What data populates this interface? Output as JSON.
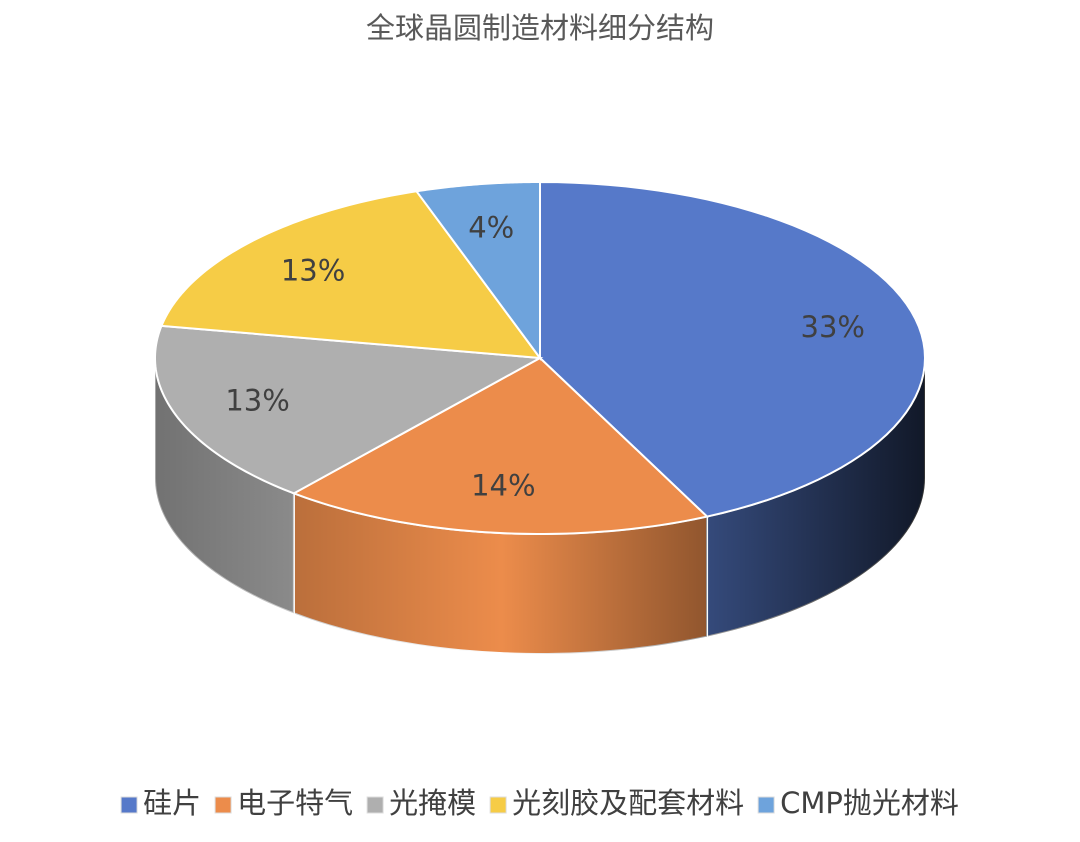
{
  "chart_data": {
    "type": "pie3d",
    "title": "全球晶圆制造材料细分结构",
    "categories": [
      "硅片",
      "电子特气",
      "光掩模",
      "光刻胶及配套材料",
      "CMP抛光材料"
    ],
    "values": [
      33,
      14,
      13,
      13,
      4
    ],
    "value_labels": [
      "33%",
      "14%",
      "13%",
      "13%",
      "4%"
    ],
    "colors": [
      "#5679c9",
      "#ec8c4b",
      "#afafaf",
      "#f6cc46",
      "#6ea3dc"
    ],
    "legend": "bottom"
  }
}
